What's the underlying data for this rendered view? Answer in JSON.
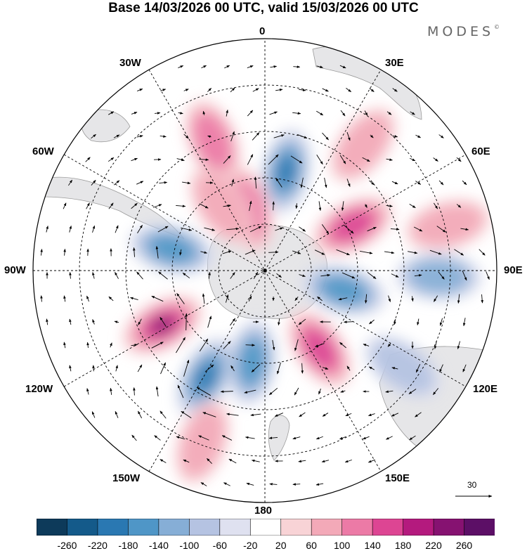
{
  "title": "Base 14/03/2026 00 UTC, valid 15/03/2026 00 UTC",
  "logo": "MODES",
  "logo_mark": "©",
  "lon_labels": {
    "north": "0",
    "nne": "30E",
    "ene": "60E",
    "east": "90E",
    "ese": "120E",
    "sse": "150E",
    "south": "180",
    "ssw": "150W",
    "wsw": "120W",
    "west": "90W",
    "wnw": "60W",
    "nnw": "30W"
  },
  "vector_scale": "30",
  "colorbar": {
    "ticks": [
      "-260",
      "-220",
      "-180",
      "-140",
      "-100",
      "-60",
      "-20",
      "20",
      "60",
      "100",
      "140",
      "180",
      "220",
      "260"
    ],
    "colors": [
      "#0d3a5a",
      "#145a8a",
      "#2a78b2",
      "#4f96c7",
      "#86aed6",
      "#b5c3e2",
      "#dfe1f0",
      "#ffffff",
      "#f8d3d6",
      "#f3a9b8",
      "#ec7aa6",
      "#dd4593",
      "#b41a7e",
      "#861271",
      "#5c0f66"
    ]
  },
  "features": {
    "blue": [
      {
        "lon": 12,
        "lat": -55,
        "value": -180
      },
      {
        "lon": -77,
        "lat": -57,
        "value": -140
      },
      {
        "lon": 104,
        "lat": -62,
        "value": -140
      },
      {
        "lon": 92,
        "lat": -30,
        "value": -100
      },
      {
        "lon": -151,
        "lat": -48,
        "value": -180
      },
      {
        "lon": -172,
        "lat": -58,
        "value": -140
      },
      {
        "lon": 125,
        "lat": -32,
        "value": -60
      }
    ],
    "pink": [
      {
        "lon": -22,
        "lat": -42,
        "value": 100
      },
      {
        "lon": -16,
        "lat": -68,
        "value": 100
      },
      {
        "lon": -34,
        "lat": -63,
        "value": 60
      },
      {
        "lon": 63,
        "lat": -56,
        "value": 140
      },
      {
        "lon": -118,
        "lat": -50,
        "value": 220
      },
      {
        "lon": 145,
        "lat": -57,
        "value": 140
      },
      {
        "lon": 38,
        "lat": -35,
        "value": 60
      },
      {
        "lon": -160,
        "lat": -27,
        "value": 60
      },
      {
        "lon": 76,
        "lat": -25,
        "value": 60
      }
    ]
  }
}
